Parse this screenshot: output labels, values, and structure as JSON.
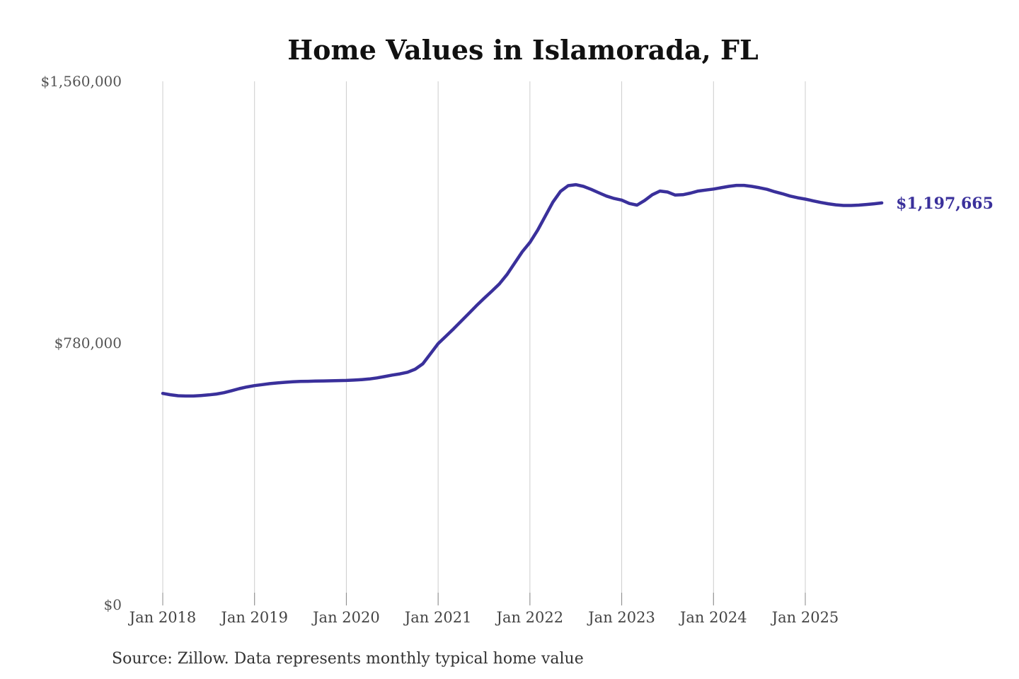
{
  "title": "Home Values in Islamorada, FL",
  "source_note": "Source: Zillow. Data represents monthly typical home value",
  "latest_value_label": "$1,197,665",
  "colors": {
    "background": "#ffffff",
    "line": "#3a309b",
    "latest_label": "#3a309b",
    "grid": "#cccccc",
    "axis_tick": "#888888",
    "title": "#111111",
    "y_label": "#555555",
    "x_label": "#444444",
    "source": "#333333"
  },
  "chart_data": {
    "type": "line",
    "title": "Home Values in Islamorada, FL",
    "series_name": "Monthly typical home value (USD)",
    "x_start_month": "2018-01",
    "x_interval": "monthly",
    "x_end_month": "2025-11",
    "ylim": [
      0,
      1560000
    ],
    "grid": "vertical-only",
    "legend": "none",
    "y_ticks": [
      {
        "label": "$1,560,000",
        "value": 1560000
      },
      {
        "label": "$780,000",
        "value": 780000
      },
      {
        "label": "$0",
        "value": 0
      }
    ],
    "x_ticks": [
      {
        "label": "Jan 2018",
        "month_index": 0
      },
      {
        "label": "Jan 2019",
        "month_index": 12
      },
      {
        "label": "Jan 2020",
        "month_index": 24
      },
      {
        "label": "Jan 2021",
        "month_index": 36
      },
      {
        "label": "Jan 2022",
        "month_index": 48
      },
      {
        "label": "Jan 2023",
        "month_index": 60
      },
      {
        "label": "Jan 2024",
        "month_index": 72
      },
      {
        "label": "Jan 2025",
        "month_index": 84
      }
    ],
    "values": [
      630000,
      626000,
      623000,
      622000,
      622000,
      623500,
      625500,
      628000,
      632000,
      638000,
      644000,
      649000,
      653000,
      656000,
      659000,
      661000,
      663000,
      664500,
      665500,
      666000,
      666500,
      667000,
      667500,
      668000,
      668500,
      669500,
      671000,
      673000,
      676000,
      680000,
      684500,
      688000,
      693000,
      702000,
      718000,
      748000,
      778000,
      800000,
      822000,
      845000,
      868000,
      891000,
      913000,
      934000,
      956000,
      984000,
      1018000,
      1052000,
      1080000,
      1116000,
      1158000,
      1200000,
      1232000,
      1249000,
      1252000,
      1247000,
      1238000,
      1228000,
      1218000,
      1211000,
      1206000,
      1196000,
      1191000,
      1205000,
      1222000,
      1233000,
      1230000,
      1221000,
      1222000,
      1227000,
      1233000,
      1236000,
      1239000,
      1243000,
      1247000,
      1250000,
      1250000,
      1247000,
      1243000,
      1238000,
      1231000,
      1225000,
      1218000,
      1213000,
      1209000,
      1204000,
      1199000,
      1195000,
      1192000,
      1190000,
      1190000,
      1191000,
      1193000,
      1195000,
      1197665
    ],
    "latest_value": 1197665
  }
}
